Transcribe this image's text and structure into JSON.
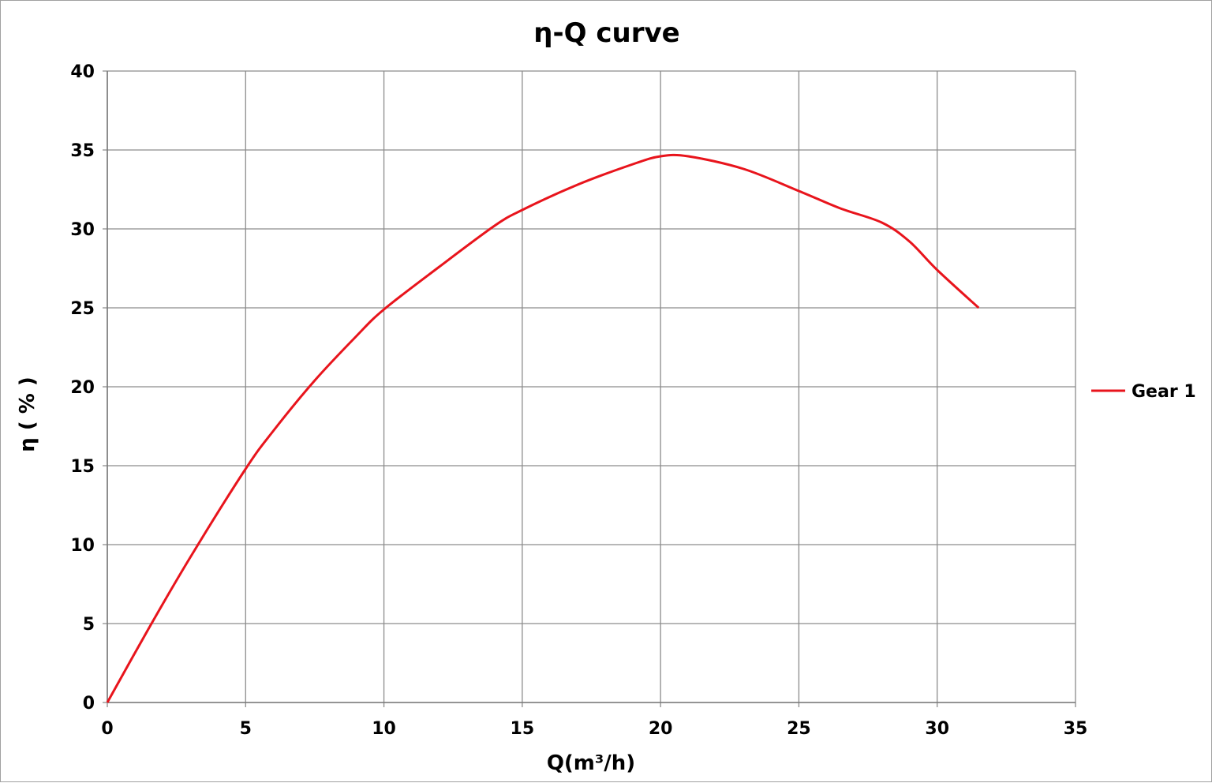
{
  "chart_data": {
    "type": "line",
    "title": "η-Q  curve",
    "xlabel": "Q(m³/h)",
    "ylabel": "η ( % )",
    "xlim": [
      0,
      35
    ],
    "ylim": [
      0,
      40
    ],
    "x_ticks": [
      "0",
      "5",
      "10",
      "15",
      "20",
      "25",
      "30",
      "35"
    ],
    "y_ticks": [
      "0",
      "5",
      "10",
      "15",
      "20",
      "25",
      "30",
      "35",
      "40"
    ],
    "grid": true,
    "legend_position": "right",
    "series": [
      {
        "name": "Gear 1",
        "color": "#e8141c",
        "x": [
          0,
          1.5,
          3,
          5,
          6,
          7.5,
          9,
          10,
          12,
          14,
          15,
          17,
          19,
          20,
          21,
          23,
          25,
          26.5,
          28,
          29,
          30,
          31.5
        ],
        "y": [
          0,
          4.7,
          9.2,
          14.8,
          17.2,
          20.4,
          23.2,
          24.9,
          27.6,
          30.2,
          31.2,
          32.8,
          34.1,
          34.6,
          34.6,
          33.8,
          32.4,
          31.3,
          30.4,
          29.2,
          27.4,
          25
        ]
      }
    ]
  }
}
